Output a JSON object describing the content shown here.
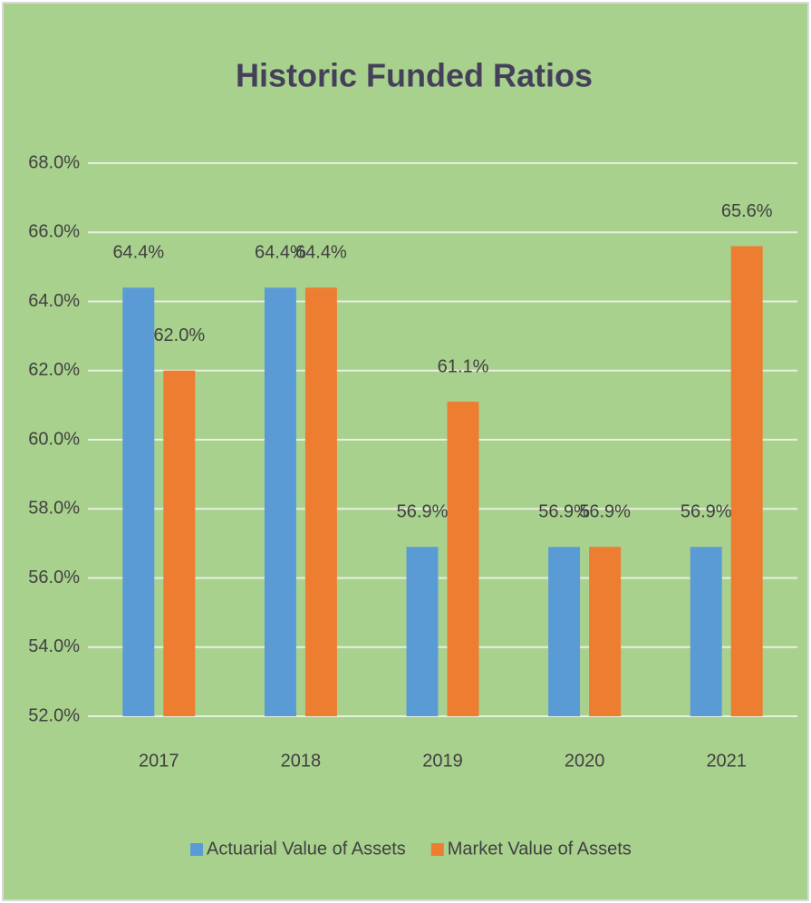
{
  "chart_data": {
    "type": "bar",
    "title": "Historic Funded Ratios",
    "categories": [
      "2017",
      "2018",
      "2019",
      "2020",
      "2021"
    ],
    "series": [
      {
        "name": "Actuarial Value of Assets",
        "color": "#5b9bd5",
        "values": [
          64.4,
          64.4,
          56.9,
          56.9,
          56.9
        ],
        "value_labels": [
          "64.4%",
          "64.4%",
          "56.9%",
          "56.9%",
          "56.9%"
        ]
      },
      {
        "name": "Market Value of Assets",
        "color": "#ed7d31",
        "values": [
          62.0,
          64.4,
          61.1,
          56.9,
          65.6
        ],
        "value_labels": [
          "62.0%",
          "64.4%",
          "61.1%",
          "56.9%",
          "65.6%"
        ]
      }
    ],
    "ylim": [
      52,
      68
    ],
    "yticks": [
      {
        "value": 52,
        "label": "52.0%"
      },
      {
        "value": 54,
        "label": "54.0%"
      },
      {
        "value": 56,
        "label": "56.0%"
      },
      {
        "value": 58,
        "label": "58.0%"
      },
      {
        "value": 60,
        "label": "60.0%"
      },
      {
        "value": 62,
        "label": "62.0%"
      },
      {
        "value": 64,
        "label": "64.0%"
      },
      {
        "value": 66,
        "label": "66.0%"
      },
      {
        "value": 68,
        "label": "68.0%"
      }
    ],
    "grid": true,
    "legend": "bottom"
  }
}
